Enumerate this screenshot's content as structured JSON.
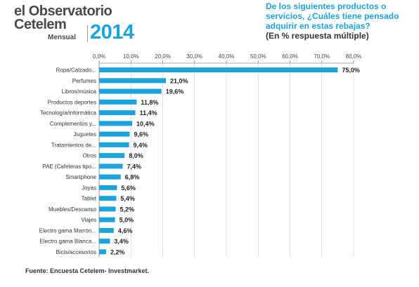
{
  "logo": {
    "line1": "el Observatorio",
    "line2": "Cetelem",
    "edition": "Mensual",
    "year": "2014"
  },
  "question": {
    "text": "De los siguientes productos o servicios, ¿Cuáles tiene pensado adquirir en estas rebajas?",
    "subtitle": "(En % respuesta múltiple)"
  },
  "source": "Fuente: Encuesta Cetelem- Investmarket.",
  "colors": {
    "bar": "#1aa3dc",
    "accent": "#1aa3dc",
    "grid": "#cccccc"
  },
  "chart_data": {
    "type": "bar",
    "orientation": "horizontal",
    "categories": [
      "Ropa/Calzado...",
      "Perfumes",
      "Libros/música",
      "Productos deportes",
      "Tecnología/informática",
      "Complementos y...",
      "Juguetes",
      "Tratamientos de...",
      "Otros",
      "PAE (Cafeteras tipo...",
      "Smartphone",
      "Joyas",
      "Tablet",
      "Muebles/Descanso",
      "Viajes",
      "Electro gama Marrón...",
      "Electro gama Blanca...",
      "Bicis/accesorios"
    ],
    "values": [
      75.0,
      21.0,
      19.6,
      11.8,
      11.4,
      10.4,
      9.6,
      9.4,
      8.0,
      7.4,
      6.8,
      5.6,
      5.4,
      5.2,
      5.0,
      4.6,
      3.4,
      2.2
    ],
    "value_labels": [
      "75,0%",
      "21,0%",
      "19,6%",
      "11,8%",
      "11,4%",
      "10,4%",
      "9,6%",
      "9,4%",
      "8,0%",
      "7,4%",
      "6,8%",
      "5,6%",
      "5,4%",
      "5,2%",
      "5,0%",
      "4,6%",
      "3,4%",
      "2,2%"
    ],
    "xlim": [
      0,
      80
    ],
    "xticks": [
      0,
      10,
      20,
      30,
      40,
      50,
      60,
      70,
      80
    ],
    "xtick_labels": [
      "0,0%",
      "10,0%",
      "20,0%",
      "30,0%",
      "40,0%",
      "50,0%",
      "60,0%",
      "70,0%",
      "80,0%"
    ],
    "axis_position": "top",
    "grid": true
  }
}
